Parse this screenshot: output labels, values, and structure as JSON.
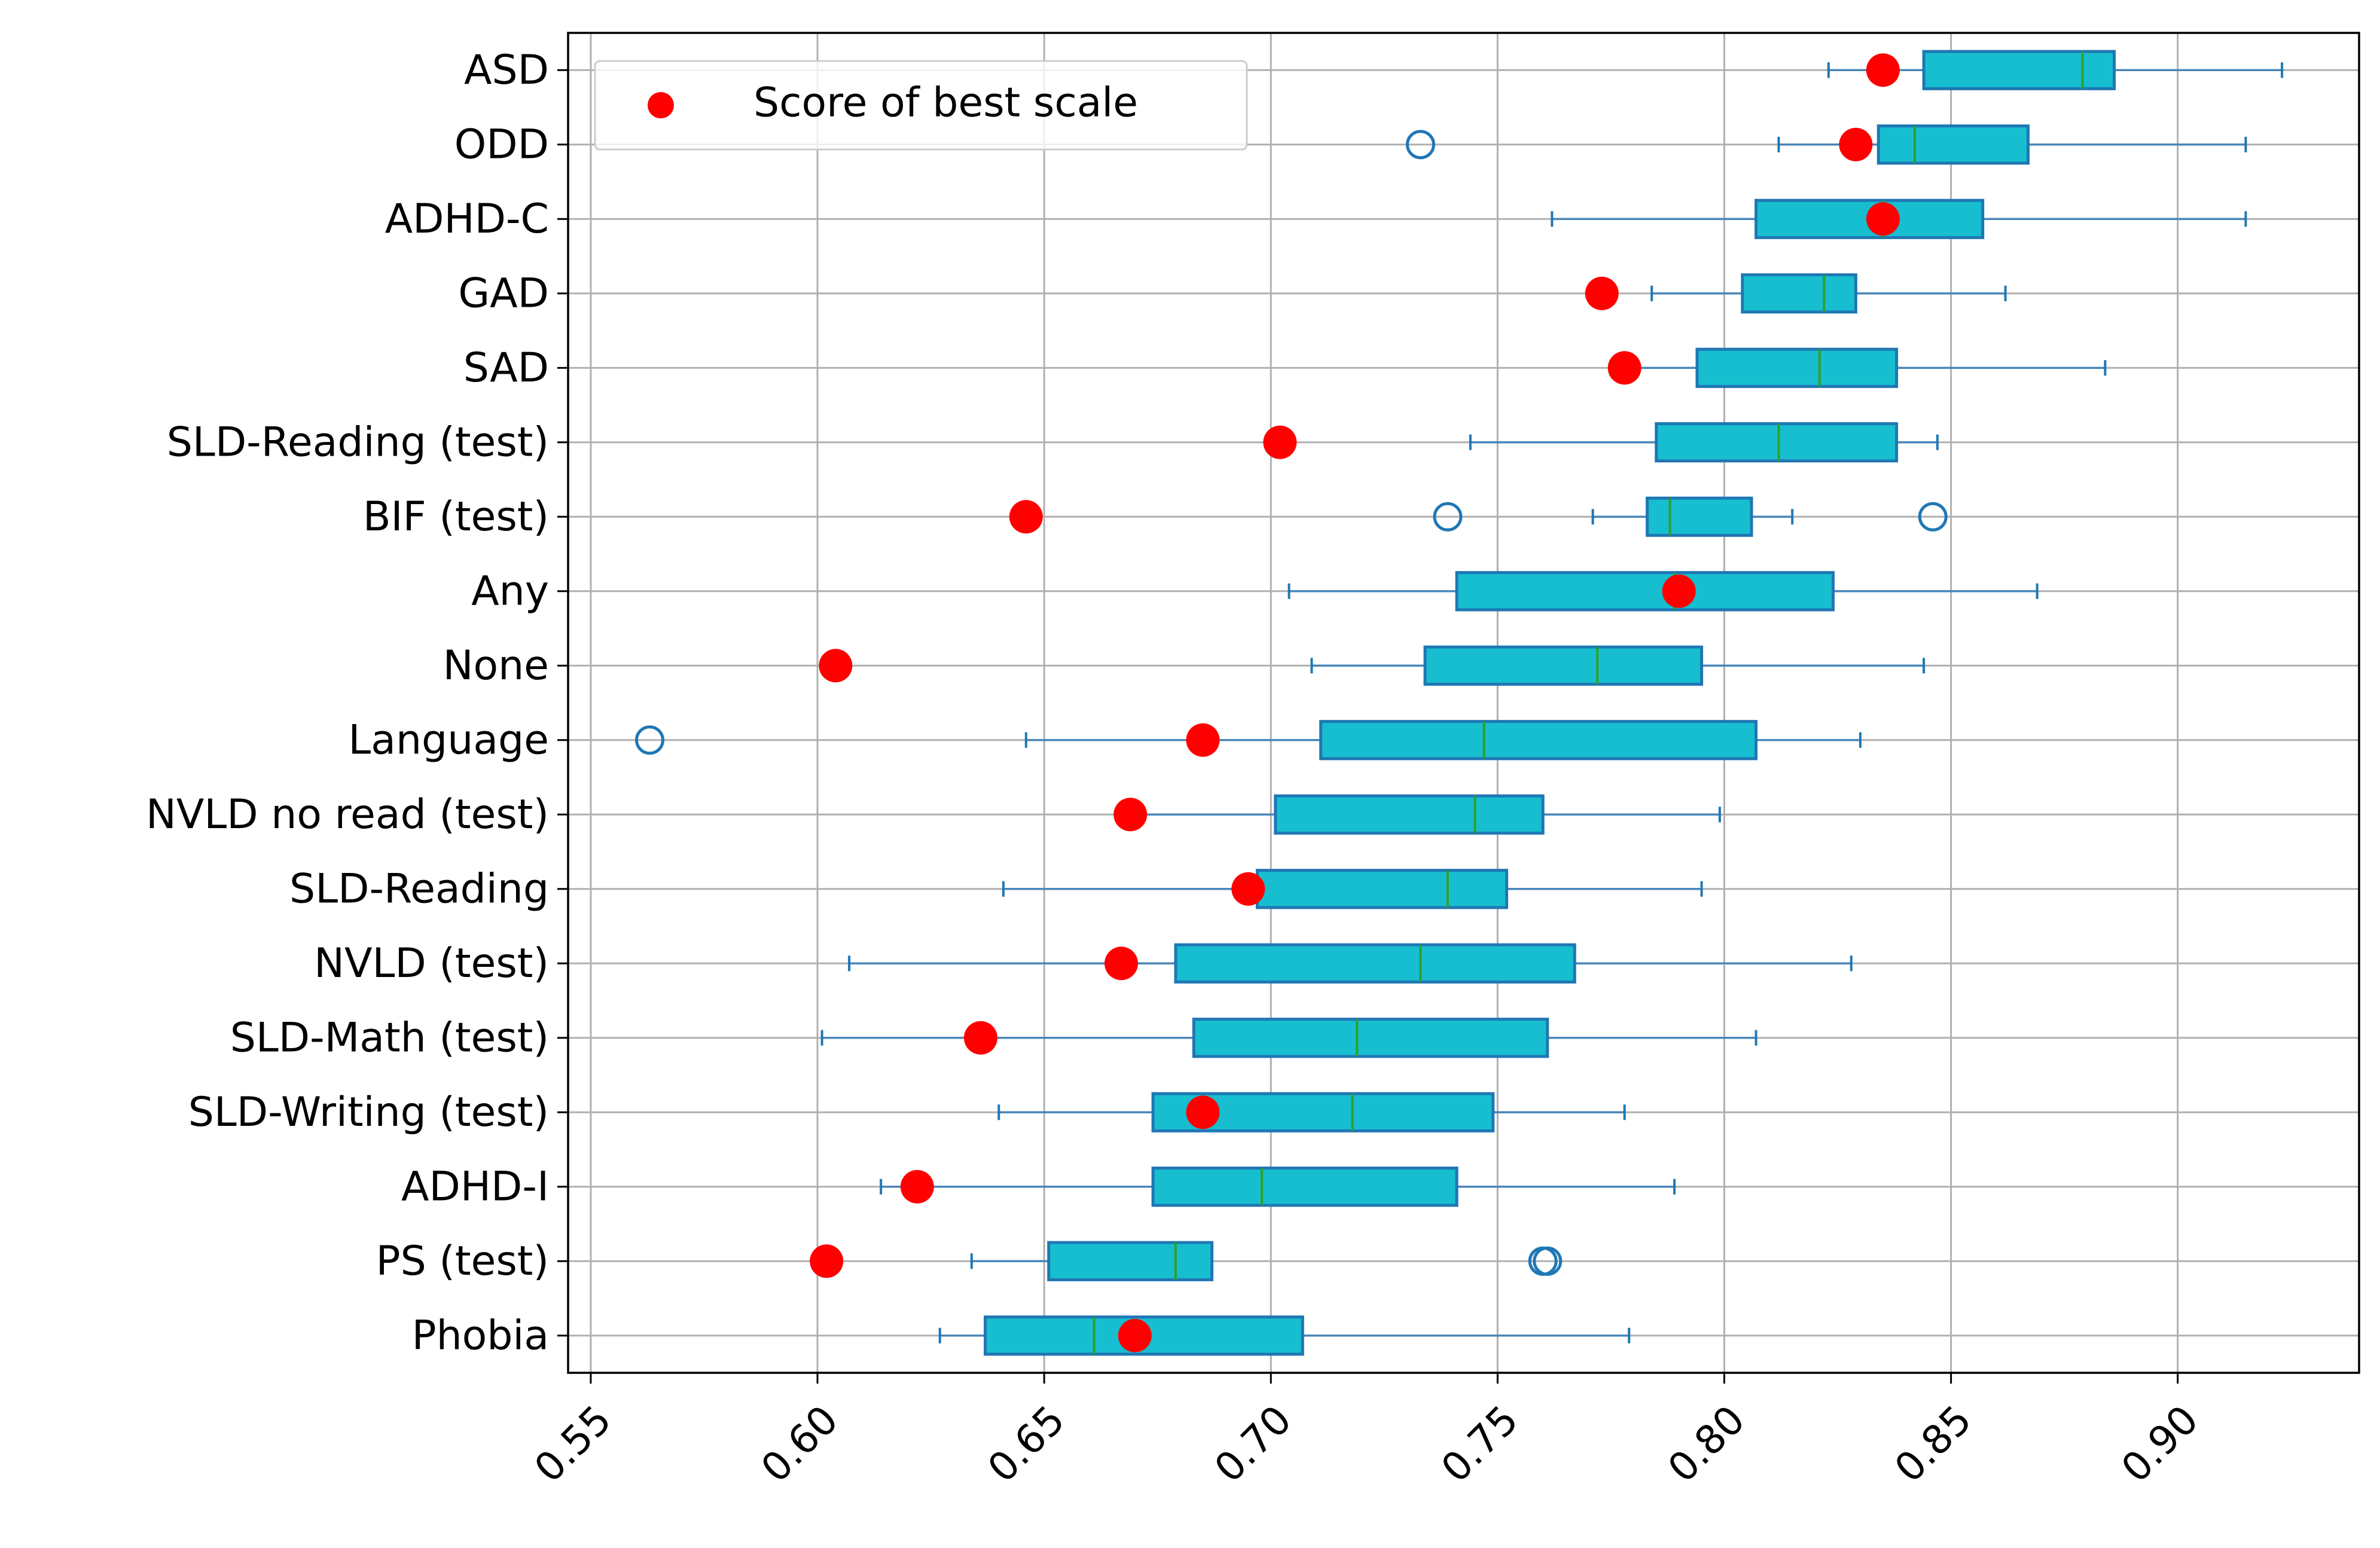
{
  "chart_data": {
    "type": "box",
    "orientation": "horizontal",
    "title": "",
    "xlabel": "",
    "ylabel": "",
    "xlim": [
      0.545,
      0.94
    ],
    "xticks": [
      0.55,
      0.6,
      0.65,
      0.7,
      0.75,
      0.8,
      0.85,
      0.9
    ],
    "xtick_labels": [
      "0.55",
      "0.60",
      "0.65",
      "0.70",
      "0.75",
      "0.80",
      "0.85",
      "0.90"
    ],
    "grid": true,
    "legend": {
      "position": "top-left",
      "entries": [
        {
          "label": "Score of best scale",
          "marker": "red-dot"
        }
      ]
    },
    "colors": {
      "box_fill": "#17becf",
      "box_edge": "#1f77b4",
      "median": "#2ca02c",
      "best_scale": "#ff0000",
      "flier": "#1f77b4",
      "grid": "#b0b0b0"
    },
    "categories": [
      "ASD",
      "ODD",
      "ADHD-C",
      "GAD",
      "SAD",
      "SLD-Reading (test)",
      "BIF (test)",
      "Any",
      "None",
      "Language",
      "NVLD no read (test)",
      "SLD-Reading",
      "NVLD (test)",
      "SLD-Math (test)",
      "SLD-Writing (test)",
      "ADHD-I",
      "PS (test)",
      "Phobia"
    ],
    "boxes": [
      {
        "whislo": 0.823,
        "q1": 0.844,
        "med": 0.879,
        "q3": 0.886,
        "whishi": 0.923,
        "fliers": []
      },
      {
        "whislo": 0.812,
        "q1": 0.834,
        "med": 0.842,
        "q3": 0.867,
        "whishi": 0.915,
        "fliers": [
          0.733
        ]
      },
      {
        "whislo": 0.762,
        "q1": 0.807,
        "med": 0.835,
        "q3": 0.857,
        "whishi": 0.915,
        "fliers": []
      },
      {
        "whislo": 0.784,
        "q1": 0.804,
        "med": 0.822,
        "q3": 0.829,
        "whishi": 0.862,
        "fliers": []
      },
      {
        "whislo": 0.777,
        "q1": 0.794,
        "med": 0.821,
        "q3": 0.838,
        "whishi": 0.884,
        "fliers": []
      },
      {
        "whislo": 0.744,
        "q1": 0.785,
        "med": 0.812,
        "q3": 0.838,
        "whishi": 0.847,
        "fliers": []
      },
      {
        "whislo": 0.771,
        "q1": 0.783,
        "med": 0.788,
        "q3": 0.806,
        "whishi": 0.815,
        "fliers": [
          0.739,
          0.846
        ]
      },
      {
        "whislo": 0.704,
        "q1": 0.741,
        "med": 0.789,
        "q3": 0.824,
        "whishi": 0.869,
        "fliers": []
      },
      {
        "whislo": 0.709,
        "q1": 0.734,
        "med": 0.772,
        "q3": 0.795,
        "whishi": 0.844,
        "fliers": []
      },
      {
        "whislo": 0.646,
        "q1": 0.711,
        "med": 0.747,
        "q3": 0.807,
        "whishi": 0.83,
        "fliers": [
          0.563
        ]
      },
      {
        "whislo": 0.666,
        "q1": 0.701,
        "med": 0.745,
        "q3": 0.76,
        "whishi": 0.799,
        "fliers": []
      },
      {
        "whislo": 0.641,
        "q1": 0.697,
        "med": 0.739,
        "q3": 0.752,
        "whishi": 0.795,
        "fliers": []
      },
      {
        "whislo": 0.607,
        "q1": 0.679,
        "med": 0.733,
        "q3": 0.767,
        "whishi": 0.828,
        "fliers": []
      },
      {
        "whislo": 0.601,
        "q1": 0.683,
        "med": 0.719,
        "q3": 0.761,
        "whishi": 0.807,
        "fliers": []
      },
      {
        "whislo": 0.64,
        "q1": 0.674,
        "med": 0.718,
        "q3": 0.749,
        "whishi": 0.778,
        "fliers": []
      },
      {
        "whislo": 0.614,
        "q1": 0.674,
        "med": 0.698,
        "q3": 0.741,
        "whishi": 0.789,
        "fliers": []
      },
      {
        "whislo": 0.634,
        "q1": 0.651,
        "med": 0.679,
        "q3": 0.687,
        "whishi": 0.687,
        "fliers": [
          0.76,
          0.761
        ]
      },
      {
        "whislo": 0.627,
        "q1": 0.637,
        "med": 0.661,
        "q3": 0.707,
        "whishi": 0.779,
        "fliers": []
      }
    ],
    "best_scale_scores": [
      0.835,
      0.829,
      0.835,
      0.773,
      0.778,
      0.702,
      0.646,
      0.79,
      0.604,
      0.685,
      0.669,
      0.695,
      0.667,
      0.636,
      0.685,
      0.622,
      0.602,
      0.67
    ]
  }
}
